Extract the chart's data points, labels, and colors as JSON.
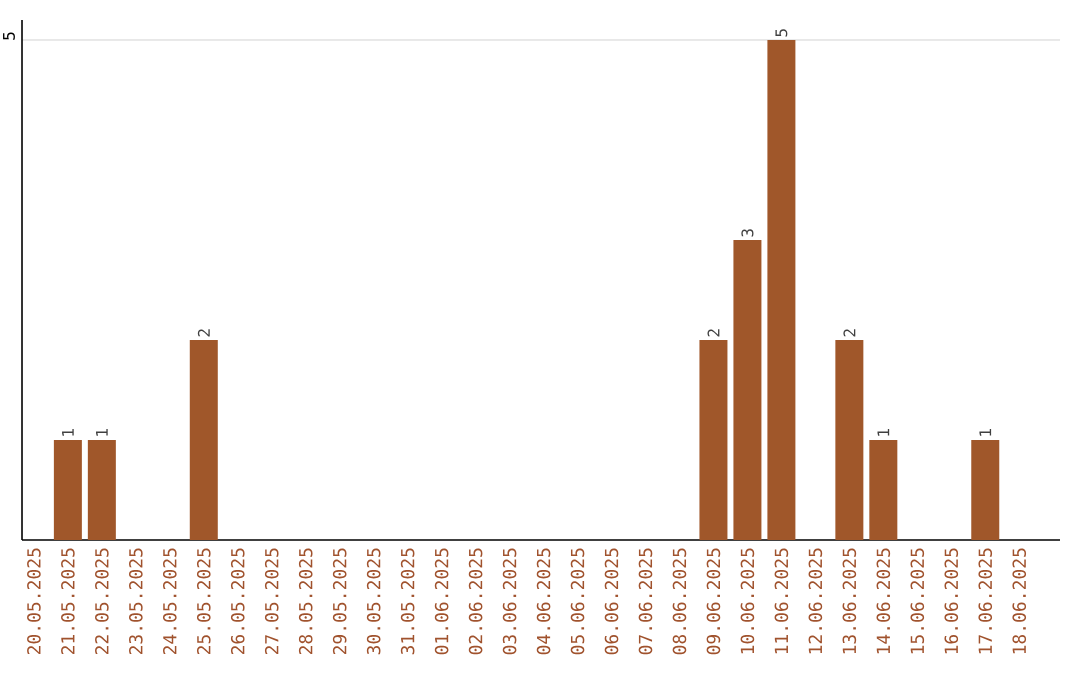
{
  "chart_data": {
    "type": "bar",
    "categories": [
      "20.05.2025",
      "21.05.2025",
      "22.05.2025",
      "23.05.2025",
      "24.05.2025",
      "25.05.2025",
      "26.05.2025",
      "27.05.2025",
      "28.05.2025",
      "29.05.2025",
      "30.05.2025",
      "31.05.2025",
      "01.06.2025",
      "02.06.2025",
      "03.06.2025",
      "04.06.2025",
      "05.06.2025",
      "06.06.2025",
      "07.06.2025",
      "08.06.2025",
      "09.06.2025",
      "10.06.2025",
      "11.06.2025",
      "12.06.2025",
      "13.06.2025",
      "14.06.2025",
      "15.06.2025",
      "16.06.2025",
      "17.06.2025",
      "18.06.2025"
    ],
    "values": [
      0,
      1,
      1,
      0,
      0,
      2,
      0,
      0,
      0,
      0,
      0,
      0,
      0,
      0,
      0,
      0,
      0,
      0,
      0,
      0,
      2,
      3,
      5,
      0,
      2,
      1,
      0,
      0,
      1,
      0
    ],
    "value_labels": [
      null,
      "1",
      "1",
      null,
      null,
      "2",
      null,
      null,
      null,
      null,
      null,
      null,
      null,
      null,
      null,
      null,
      null,
      null,
      null,
      null,
      "2",
      "3",
      "5",
      null,
      "2",
      "1",
      null,
      null,
      "1",
      null
    ],
    "color": "#a0572a",
    "ylim": [
      0,
      5.2
    ],
    "yticks": [
      5
    ],
    "grid": "y"
  }
}
